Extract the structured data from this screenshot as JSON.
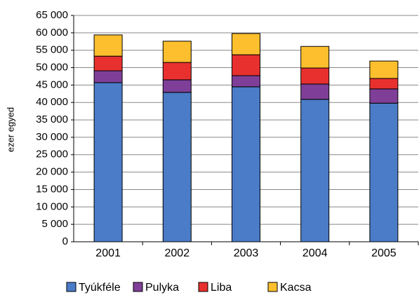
{
  "chart_data": {
    "type": "stacked_bar",
    "ylabel": "ezer egyed",
    "categories": [
      "2001",
      "2002",
      "2003",
      "2004",
      "2005"
    ],
    "series": [
      {
        "name": "Tyúkféle",
        "color": "#4a7cc7",
        "values": [
          45700,
          42900,
          44500,
          40900,
          39800
        ]
      },
      {
        "name": "Pulyka",
        "color": "#7f3f98",
        "values": [
          3400,
          3600,
          3200,
          4400,
          4100
        ]
      },
      {
        "name": "Liba",
        "color": "#e8312f",
        "values": [
          4200,
          5000,
          6000,
          4600,
          3000
        ]
      },
      {
        "name": "Kacsa",
        "color": "#fdbf2d",
        "values": [
          6100,
          6100,
          6100,
          6200,
          5000
        ]
      }
    ],
    "ylim": [
      0,
      65000
    ],
    "yticks": [
      0,
      {
        "value": 5000,
        "label": "5 000"
      },
      {
        "value": 10000,
        "label": "10 000"
      },
      {
        "value": 15000,
        "label": "15 000"
      },
      {
        "value": 20000,
        "label": "20 000"
      },
      {
        "value": 25000,
        "label": "25 000"
      },
      {
        "value": 30000,
        "label": "30 000"
      },
      {
        "value": 35000,
        "label": "35 000"
      },
      {
        "value": 40000,
        "label": "40 000"
      },
      {
        "value": 45000,
        "label": "45 000"
      },
      {
        "value": 50000,
        "label": "50 000"
      },
      {
        "value": 55000,
        "label": "55 000"
      },
      {
        "value": 60000,
        "label": "60 000"
      },
      {
        "value": 65000,
        "label": "65 000"
      }
    ],
    "grid": true
  }
}
